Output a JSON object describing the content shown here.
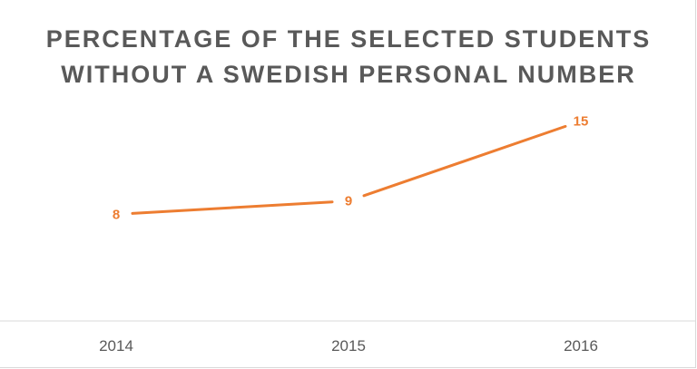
{
  "chart_data": {
    "type": "line",
    "title_lines": [
      "PERCENTAGE OF THE SELECTED STUDENTS",
      "WITHOUT A SWEDISH PERSONAL NUMBER"
    ],
    "categories": [
      "2014",
      "2015",
      "2016"
    ],
    "series": [
      {
        "values": [
          8,
          9,
          15
        ]
      }
    ],
    "data_labels": [
      "8",
      "9",
      "15"
    ],
    "xlabel": "",
    "ylabel": "",
    "ylim": [
      0,
      20
    ],
    "grid": false,
    "legend": "none",
    "colors": {
      "line": "#ed7d31",
      "axis": "#d9d9d9",
      "title": "#595959",
      "tick": "#595959"
    }
  }
}
